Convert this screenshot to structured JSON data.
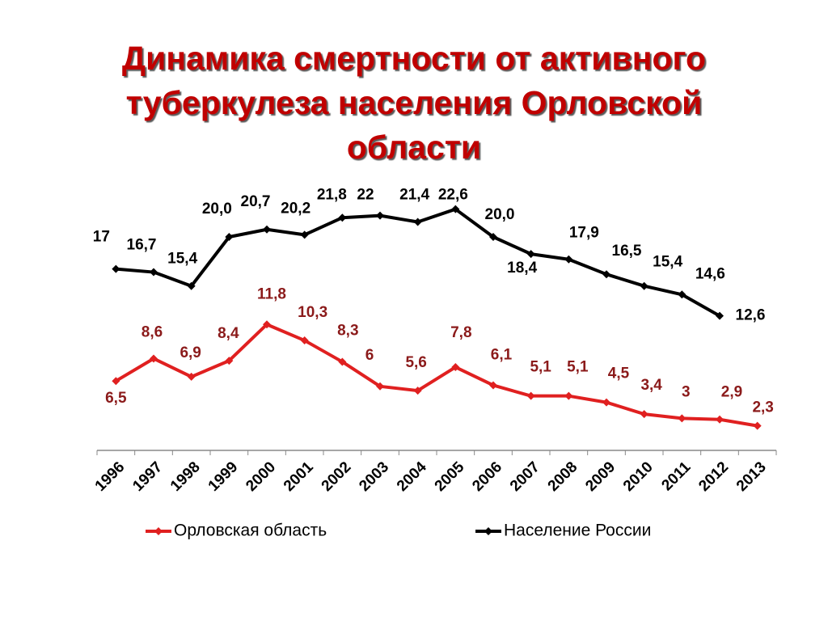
{
  "chart_data": {
    "type": "line",
    "title": [
      "Динамика смертности от активного",
      "туберкулеза населения Орловской",
      "области"
    ],
    "categories": [
      "1996",
      "1997",
      "1998",
      "1999",
      "2000",
      "2001",
      "2002",
      "2003",
      "2004",
      "2005",
      "2006",
      "2007",
      "2008",
      "2009",
      "2010",
      "2011",
      "2012",
      "2013"
    ],
    "ylim": [
      0,
      25
    ],
    "series": [
      {
        "name": "Орловская область",
        "color": "#e02020",
        "values": [
          6.5,
          8.6,
          6.9,
          8.4,
          11.8,
          10.3,
          8.3,
          6,
          5.6,
          7.8,
          6.1,
          5.1,
          5.1,
          4.5,
          3.4,
          3,
          2.9,
          2.3
        ],
        "value_labels": [
          "6,5",
          "8,6",
          "6,9",
          "8,4",
          "11,8",
          "10,3",
          "8,3",
          "6",
          "5,6",
          "7,8",
          "6,1",
          "5,1",
          "5,1",
          "4,5",
          "3,4",
          "3",
          "2,9",
          "2,3"
        ]
      },
      {
        "name": "Население России",
        "color": "#000000",
        "values": [
          17,
          16.7,
          15.4,
          20.0,
          20.7,
          20.2,
          21.8,
          22,
          21.4,
          22.6,
          20.0,
          18.4,
          17.9,
          16.5,
          15.4,
          14.6,
          12.6,
          null
        ],
        "value_labels": [
          "17",
          "16,7",
          "15,4",
          "20,0",
          "20,7",
          "20,2",
          "21,8",
          "22",
          "21,4",
          "22,6",
          "20,0",
          "18,4",
          "17,9",
          "16,5",
          "15,4",
          "14,6",
          "12,6",
          null
        ]
      }
    ]
  }
}
